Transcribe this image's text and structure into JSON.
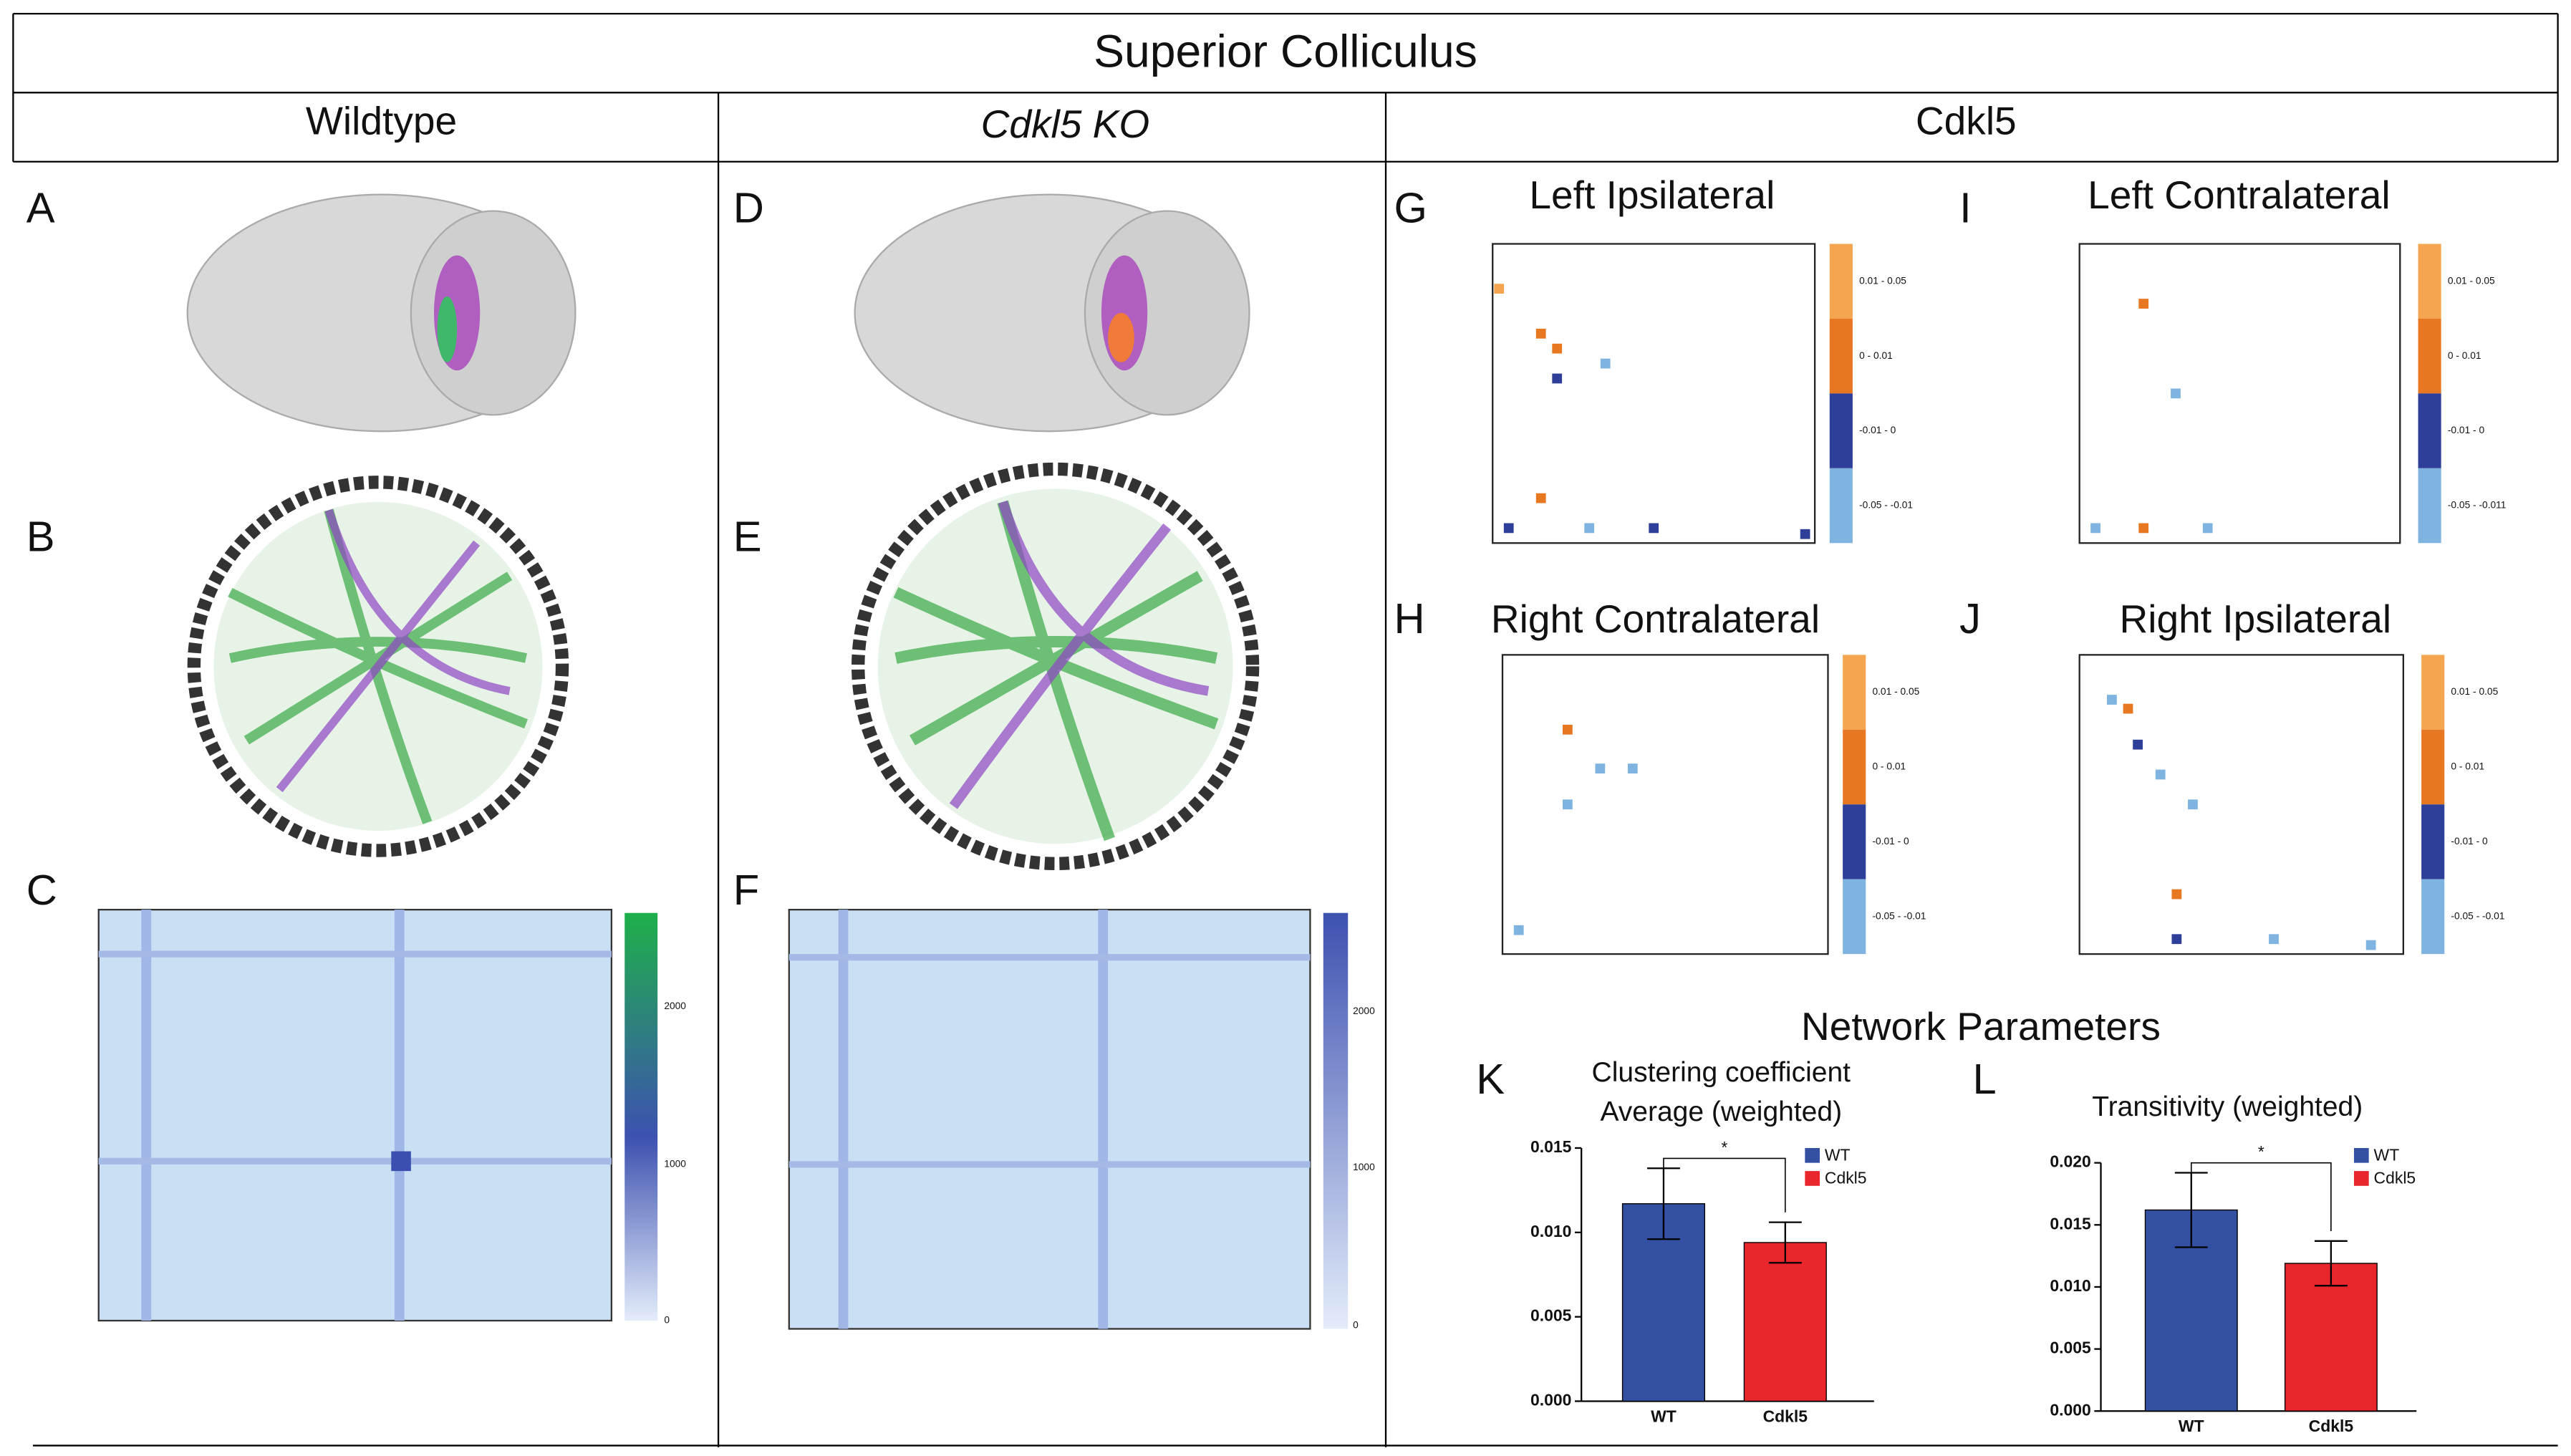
{
  "header": {
    "title": "Superior Colliculus"
  },
  "columns": [
    "Wildtype",
    "Cdkl5 KO",
    "Cdkl5"
  ],
  "panels": {
    "A": "A",
    "B": "B",
    "C": "C",
    "D": "D",
    "E": "E",
    "F": "F"
  },
  "density_colorbars": [
    {
      "letter": "C",
      "ticks": [
        "2000",
        "1000",
        "0"
      ]
    },
    {
      "letter": "F",
      "ticks": [
        "2000",
        "1000",
        "0"
      ]
    }
  ],
  "heatmaps": [
    {
      "letter": "G",
      "title": "Left Ipsilateral",
      "colorbar": [
        "0.01 - 0.05",
        "0 - 0.01",
        "-0.01 - 0",
        "-0.05 - -0.01"
      ]
    },
    {
      "letter": "I",
      "title": "Left Contralateral",
      "colorbar": [
        "0.01 - 0.05",
        "0 - 0.01",
        "-0.01 - 0",
        "-0.05 - -0.011"
      ]
    },
    {
      "letter": "H",
      "title": "Right Contralateral",
      "colorbar": [
        "0.01 - 0.05",
        "0 - 0.01",
        "-0.01 - 0",
        "-0.05 - -0.01"
      ]
    },
    {
      "letter": "J",
      "title": "Right Ipsilateral",
      "colorbar": [
        "0.01 - 0.05",
        "0 - 0.01",
        "-0.01 - 0",
        "-0.05 - -0.01"
      ]
    }
  ],
  "network_title": "Network Parameters",
  "chart_data": [
    {
      "type": "bar",
      "letter": "K",
      "title": [
        "Clustering coefficient",
        "Average (weighted)"
      ],
      "categories": [
        "WT",
        "Cdkl5"
      ],
      "values": [
        0.0117,
        0.0094
      ],
      "errors": [
        0.0021,
        0.0012
      ],
      "colors": [
        "#3350a3",
        "#e8262b"
      ],
      "ylim": [
        0,
        0.015
      ],
      "yticks": [
        {
          "value": 0,
          "label": "0.000"
        },
        {
          "value": 0.005,
          "label": "0.005"
        },
        {
          "value": 0.01,
          "label": "0.010"
        },
        {
          "value": 0.015,
          "label": "0.015"
        }
      ],
      "annotation": "*"
    },
    {
      "type": "bar",
      "letter": "L",
      "title": [
        "Transitivity (weighted)"
      ],
      "categories": [
        "WT",
        "Cdkl5"
      ],
      "values": [
        0.0162,
        0.0119
      ],
      "errors": [
        0.003,
        0.0018
      ],
      "colors": [
        "#3350a3",
        "#e8262b"
      ],
      "ylim": [
        0,
        0.02
      ],
      "yticks": [
        {
          "value": 0,
          "label": "0.000"
        },
        {
          "value": 0.005,
          "label": "0.005"
        },
        {
          "value": 0.01,
          "label": "0.010"
        },
        {
          "value": 0.015,
          "label": "0.015"
        },
        {
          "value": 0.02,
          "label": "0.020"
        }
      ],
      "annotation": "*"
    }
  ]
}
